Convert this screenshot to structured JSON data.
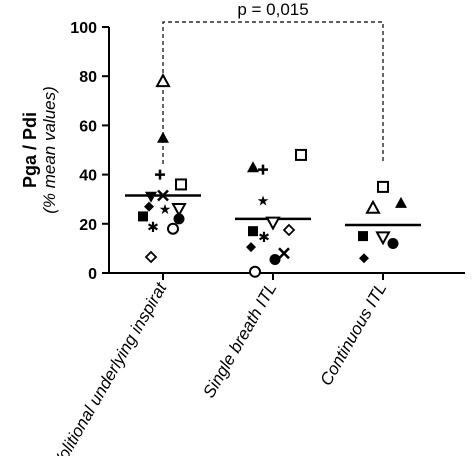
{
  "chart_data": {
    "type": "scatter",
    "ylabel": "Pga / Pdi",
    "ylabel_sub": "(% mean values)",
    "xlabel": "",
    "ylim": [
      0,
      100
    ],
    "yticks": [
      0,
      20,
      40,
      60,
      80,
      100
    ],
    "grid": false,
    "categories": [
      "Volitional underlying inspirat",
      "Single breath ITL",
      "Continuous ITL"
    ],
    "annotation": "p = 0,015",
    "annotation_between": [
      "Volitional underlying inspirat",
      "Continuous ITL"
    ],
    "means": [
      31.5,
      22,
      19.5
    ],
    "points": [
      [
        {
          "symbol": "triangle-open",
          "y": 78
        },
        {
          "symbol": "triangle-filled",
          "y": 55
        },
        {
          "symbol": "plus",
          "y": 40
        },
        {
          "symbol": "square-open",
          "y": 36
        },
        {
          "symbol": "triangle-down-filled",
          "y": 31
        },
        {
          "symbol": "cross",
          "y": 31.5
        },
        {
          "symbol": "diamond-filled",
          "y": 27
        },
        {
          "symbol": "star",
          "y": 26
        },
        {
          "symbol": "triangle-down-open",
          "y": 26
        },
        {
          "symbol": "square-filled",
          "y": 23
        },
        {
          "symbol": "circle-filled",
          "y": 22
        },
        {
          "symbol": "asterisk",
          "y": 19.5
        },
        {
          "symbol": "circle-open",
          "y": 18
        },
        {
          "symbol": "diamond-open",
          "y": 6.5
        }
      ],
      [
        {
          "symbol": "square-open",
          "y": 48
        },
        {
          "symbol": "triangle-filled",
          "y": 43
        },
        {
          "symbol": "plus",
          "y": 42
        },
        {
          "symbol": "star",
          "y": 29.5
        },
        {
          "symbol": "triangle-down-open",
          "y": 20.5
        },
        {
          "symbol": "square-filled",
          "y": 17
        },
        {
          "symbol": "diamond-open",
          "y": 17.5
        },
        {
          "symbol": "asterisk",
          "y": 15.5
        },
        {
          "symbol": "diamond-filled",
          "y": 10.5
        },
        {
          "symbol": "cross",
          "y": 8
        },
        {
          "symbol": "circle-filled",
          "y": 5.5
        },
        {
          "symbol": "circle-open",
          "y": 0.5
        }
      ],
      [
        {
          "symbol": "square-open",
          "y": 35
        },
        {
          "symbol": "triangle-filled",
          "y": 28.5
        },
        {
          "symbol": "triangle-open",
          "y": 26.5
        },
        {
          "symbol": "square-filled",
          "y": 15
        },
        {
          "symbol": "triangle-down-open",
          "y": 14.5
        },
        {
          "symbol": "circle-filled",
          "y": 12
        },
        {
          "symbol": "diamond-filled",
          "y": 6
        }
      ]
    ]
  }
}
